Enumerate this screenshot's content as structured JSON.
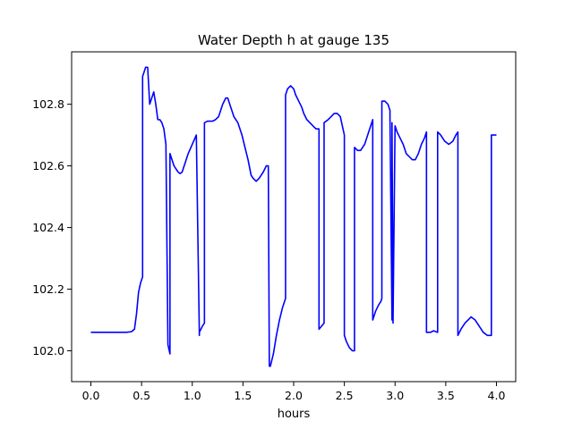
{
  "chart_data": {
    "type": "line",
    "title": "Water Depth h at gauge 135",
    "xlabel": "hours",
    "ylabel": "",
    "xlim": [
      -0.19,
      4.19
    ],
    "ylim": [
      101.9,
      102.97
    ],
    "xticks": [
      0.0,
      0.5,
      1.0,
      1.5,
      2.0,
      2.5,
      3.0,
      3.5,
      4.0
    ],
    "xtick_labels": [
      "0.0",
      "0.5",
      "1.0",
      "1.5",
      "2.0",
      "2.5",
      "3.0",
      "3.5",
      "4.0"
    ],
    "yticks": [
      102.0,
      102.2,
      102.4,
      102.6,
      102.8
    ],
    "ytick_labels": [
      "102.0",
      "102.2",
      "102.4",
      "102.6",
      "102.8"
    ],
    "grid": false,
    "line_color": "#0000ff",
    "series": [
      {
        "x": [
          0.0,
          0.1,
          0.2,
          0.3,
          0.35,
          0.4,
          0.43,
          0.45,
          0.47,
          0.49,
          0.51,
          0.51,
          0.54,
          0.56,
          0.58,
          0.6,
          0.62,
          0.64,
          0.66,
          0.68,
          0.7,
          0.72,
          0.74,
          0.76,
          0.76,
          0.78,
          0.78,
          0.8,
          0.82,
          0.84,
          0.86,
          0.88,
          0.9,
          0.93,
          0.96,
          1.0,
          1.04,
          1.07,
          1.07,
          1.1,
          1.12,
          1.12,
          1.15,
          1.18,
          1.2,
          1.23,
          1.26,
          1.3,
          1.33,
          1.35,
          1.38,
          1.41,
          1.45,
          1.49,
          1.52,
          1.55,
          1.58,
          1.6,
          1.63,
          1.66,
          1.68,
          1.7,
          1.73,
          1.75,
          1.76,
          1.77,
          1.8,
          1.83,
          1.86,
          1.89,
          1.92,
          1.92,
          1.94,
          1.97,
          2.0,
          2.02,
          2.05,
          2.08,
          2.1,
          2.13,
          2.16,
          2.19,
          2.22,
          2.25,
          2.25,
          2.3,
          2.3,
          2.34,
          2.37,
          2.4,
          2.43,
          2.46,
          2.5,
          2.5,
          2.52,
          2.55,
          2.58,
          2.6,
          2.6,
          2.63,
          2.66,
          2.7,
          2.73,
          2.76,
          2.78,
          2.78,
          2.81,
          2.84,
          2.86,
          2.87,
          2.87,
          2.9,
          2.93,
          2.95,
          2.95,
          2.97,
          2.97,
          2.98,
          3.0,
          3.02,
          3.05,
          3.08,
          3.11,
          3.14,
          3.17,
          3.2,
          3.23,
          3.26,
          3.29,
          3.31,
          3.31,
          3.35,
          3.38,
          3.42,
          3.42,
          3.45,
          3.49,
          3.53,
          3.57,
          3.6,
          3.62,
          3.62,
          3.65,
          3.69,
          3.72,
          3.75,
          3.79,
          3.83,
          3.87,
          3.91,
          3.95,
          3.95,
          3.98,
          4.0
        ],
        "y": [
          102.06,
          102.06,
          102.06,
          102.06,
          102.06,
          102.062,
          102.07,
          102.12,
          102.19,
          102.22,
          102.24,
          102.89,
          102.92,
          102.92,
          102.8,
          102.82,
          102.84,
          102.8,
          102.75,
          102.75,
          102.74,
          102.72,
          102.67,
          102.02,
          102.02,
          101.99,
          102.64,
          102.62,
          102.6,
          102.59,
          102.58,
          102.575,
          102.58,
          102.61,
          102.64,
          102.67,
          102.7,
          102.05,
          102.06,
          102.08,
          102.09,
          102.74,
          102.745,
          102.745,
          102.745,
          102.75,
          102.76,
          102.8,
          102.82,
          102.82,
          102.79,
          102.76,
          102.74,
          102.7,
          102.66,
          102.62,
          102.57,
          102.56,
          102.55,
          102.56,
          102.57,
          102.58,
          102.6,
          102.6,
          101.95,
          101.95,
          101.99,
          102.05,
          102.1,
          102.14,
          102.17,
          102.83,
          102.85,
          102.86,
          102.85,
          102.83,
          102.81,
          102.79,
          102.77,
          102.75,
          102.74,
          102.73,
          102.72,
          102.72,
          102.07,
          102.09,
          102.74,
          102.75,
          102.76,
          102.77,
          102.77,
          102.76,
          102.7,
          102.05,
          102.03,
          102.01,
          102.0,
          102.0,
          102.66,
          102.65,
          102.65,
          102.67,
          102.7,
          102.73,
          102.75,
          102.1,
          102.13,
          102.15,
          102.16,
          102.17,
          102.81,
          102.81,
          102.8,
          102.78,
          102.76,
          102.1,
          102.74,
          102.09,
          102.73,
          102.71,
          102.69,
          102.67,
          102.64,
          102.63,
          102.62,
          102.62,
          102.64,
          102.67,
          102.69,
          102.71,
          102.06,
          102.06,
          102.065,
          102.06,
          102.71,
          102.7,
          102.68,
          102.67,
          102.68,
          102.7,
          102.71,
          102.05,
          102.07,
          102.09,
          102.1,
          102.11,
          102.1,
          102.08,
          102.06,
          102.05,
          102.05,
          102.7,
          102.7,
          102.7
        ]
      }
    ]
  }
}
